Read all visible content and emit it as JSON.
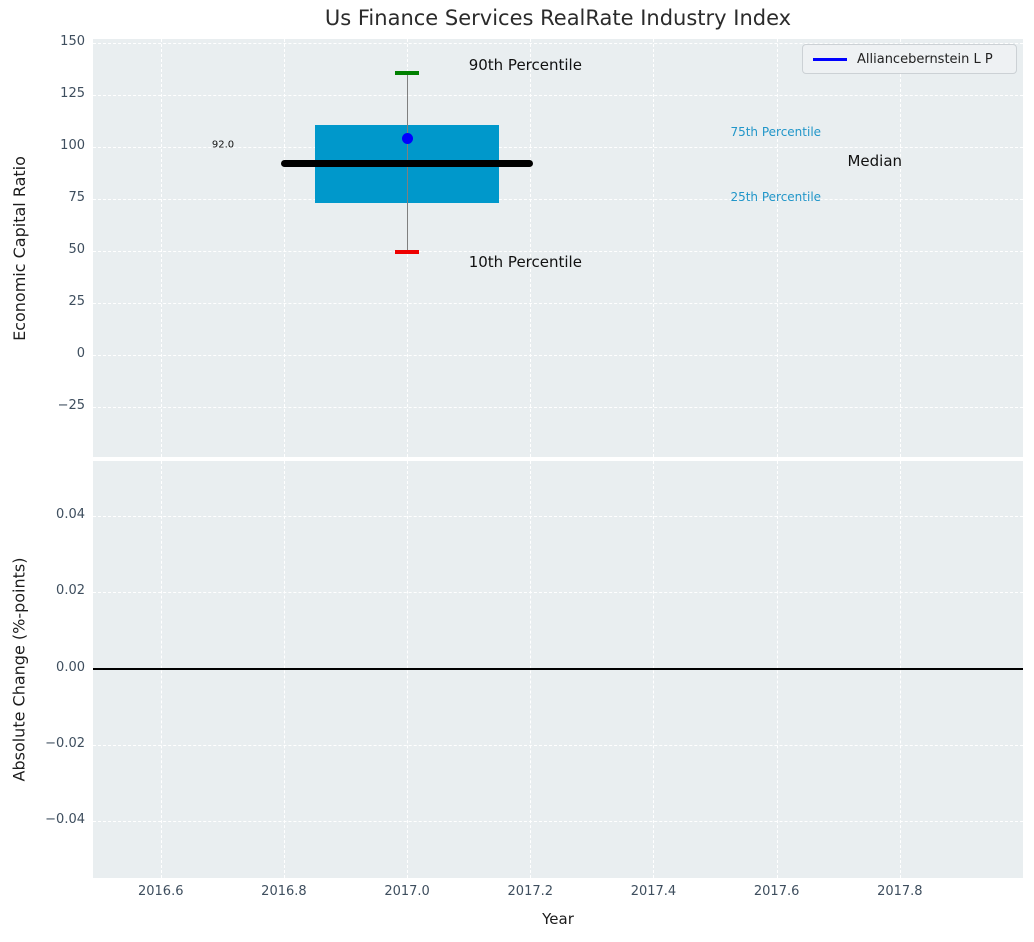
{
  "title": "Us Finance Services RealRate Industry Index",
  "xlabel": "Year",
  "legend": {
    "label": "Alliancebernstein L P",
    "line_color": "#0000ff"
  },
  "chart_data": [
    {
      "type": "boxplot",
      "title": "Us Finance Services RealRate Industry Index",
      "ylabel": "Economic Capital Ratio",
      "xlabel": "Year",
      "xlim": [
        2016.49,
        2018.0
      ],
      "ylim": [
        -49,
        152
      ],
      "grid": true,
      "xticks": [
        "2016.6",
        "2016.8",
        "2017.0",
        "2017.2",
        "2017.4",
        "2017.6",
        "2017.8"
      ],
      "xtick_values": [
        2016.6,
        2016.8,
        2017.0,
        2017.2,
        2017.4,
        2017.6,
        2017.8
      ],
      "yticks": [
        "150",
        "125",
        "100",
        "75",
        "50",
        "25",
        "0",
        "−25"
      ],
      "ytick_values": [
        150,
        125,
        100,
        75,
        50,
        25,
        0,
        -25
      ],
      "box": {
        "x": 2017.0,
        "p10": 49.5,
        "p25": 73,
        "median": 92.0,
        "p75": 110.5,
        "p90": 135.5,
        "box_half_width": 0.15,
        "median_half_width": 0.205,
        "cap_half_width": 0.02,
        "box_color": "#0098cb",
        "median_color": "#000000",
        "whisker_color": "#7f7f7f",
        "p90_cap_color": "#008000",
        "p10_cap_color": "#ee0000"
      },
      "series": [
        {
          "name": "Alliancebernstein L P",
          "type": "scatter",
          "x": [
            2017.0
          ],
          "y": [
            104
          ],
          "color": "#0000ff"
        }
      ],
      "annotations": [
        {
          "name": "annotation-90th-percentile",
          "text": "90th Percentile",
          "x": 2017.1,
          "y": 139.5,
          "color": "#111111",
          "size": 15
        },
        {
          "name": "annotation-10th-percentile",
          "text": "10th Percentile",
          "x": 2017.1,
          "y": 45.0,
          "color": "#111111",
          "size": 15
        },
        {
          "name": "annotation-75th-percentile",
          "text": "75th Percentile",
          "x": 2017.525,
          "y": 107.5,
          "color": "#2196c9",
          "size": 12
        },
        {
          "name": "annotation-25th-percentile",
          "text": "25th Percentile",
          "x": 2017.525,
          "y": 76.0,
          "color": "#2196c9",
          "size": 12
        },
        {
          "name": "annotation-median",
          "text": "Median",
          "x": 2017.715,
          "y": 93.5,
          "color": "#111111",
          "size": 15
        },
        {
          "name": "annotation-median-value",
          "text": "92.0",
          "x": 2016.683,
          "y": 101.0,
          "color": "#111111",
          "size": 10
        }
      ]
    },
    {
      "type": "line",
      "ylabel": "Absolute Change (%-points)",
      "xlabel": "Year",
      "xlim": [
        2016.49,
        2018.0
      ],
      "ylim": [
        -0.0548,
        0.0543
      ],
      "grid": true,
      "xticks": [
        "2016.6",
        "2016.8",
        "2017.0",
        "2017.2",
        "2017.4",
        "2017.6",
        "2017.8"
      ],
      "xtick_values": [
        2016.6,
        2016.8,
        2017.0,
        2017.2,
        2017.4,
        2017.6,
        2017.8
      ],
      "yticks": [
        "0.04",
        "0.02",
        "0.00",
        "−0.02",
        "−0.04"
      ],
      "ytick_values": [
        0.04,
        0.02,
        0.0,
        -0.02,
        -0.04
      ],
      "zero_line": {
        "y": 0.0,
        "color": "#000000"
      }
    }
  ]
}
